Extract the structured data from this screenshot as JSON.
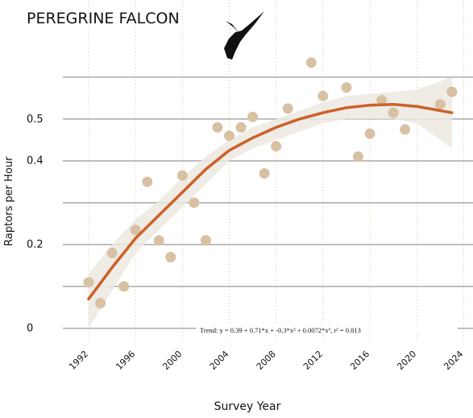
{
  "chart_data": {
    "type": "scatter",
    "title": "PEREGRINE FALCON",
    "x_label": "Survey Year",
    "y_label": "Raptors per Hour",
    "annotation": "Trend: y = 0.39 + 0.71*x + -0.3*x² + 0.0072*x³, r² = 0.813",
    "xlim": [
      1989.8,
      2024.8
    ],
    "ylim": [
      -0.02,
      0.64
    ],
    "xticks": [
      1992,
      1996,
      2000,
      2004,
      2008,
      2012,
      2016,
      2020,
      2024
    ],
    "yticks": [
      0.0,
      0.2,
      0.4,
      0.5
    ],
    "ygrid": [
      0,
      0.1,
      0.2,
      0.3,
      0.4,
      0.5,
      0.6
    ],
    "grid": true,
    "points": {
      "color": "#d8c1a3",
      "x": [
        1992,
        1993,
        1994,
        1995,
        1996,
        1997,
        1998,
        1999,
        2000,
        2001,
        2002,
        2003,
        2004,
        2005,
        2006,
        2007,
        2008,
        2009,
        2011,
        2012,
        2014,
        2015,
        2016,
        2017,
        2018,
        2019,
        2022,
        2023
      ],
      "values": [
        0.11,
        0.06,
        0.18,
        0.1,
        0.235,
        0.35,
        0.21,
        0.17,
        0.365,
        0.3,
        0.21,
        0.48,
        0.46,
        0.48,
        0.505,
        0.37,
        0.435,
        0.525,
        0.635,
        0.555,
        0.575,
        0.41,
        0.465,
        0.545,
        0.515,
        0.475,
        0.535,
        0.565
      ]
    },
    "trend": {
      "color": "#cc6128",
      "band_color": "#ece7e1",
      "x": [
        1992,
        1994,
        1996,
        1998,
        2000,
        2002,
        2004,
        2006,
        2008,
        2010,
        2012,
        2014,
        2016,
        2018,
        2020,
        2023
      ],
      "values": [
        0.07,
        0.145,
        0.215,
        0.27,
        0.325,
        0.38,
        0.425,
        0.455,
        0.48,
        0.5,
        0.515,
        0.527,
        0.533,
        0.535,
        0.53,
        0.515
      ],
      "lower": [
        0.0,
        0.09,
        0.18,
        0.235,
        0.29,
        0.345,
        0.4,
        0.43,
        0.45,
        0.47,
        0.49,
        0.5,
        0.5,
        0.5,
        0.49,
        0.43
      ],
      "upper": [
        0.13,
        0.2,
        0.26,
        0.305,
        0.36,
        0.41,
        0.45,
        0.48,
        0.5,
        0.52,
        0.54,
        0.555,
        0.56,
        0.565,
        0.57,
        0.6
      ]
    }
  }
}
